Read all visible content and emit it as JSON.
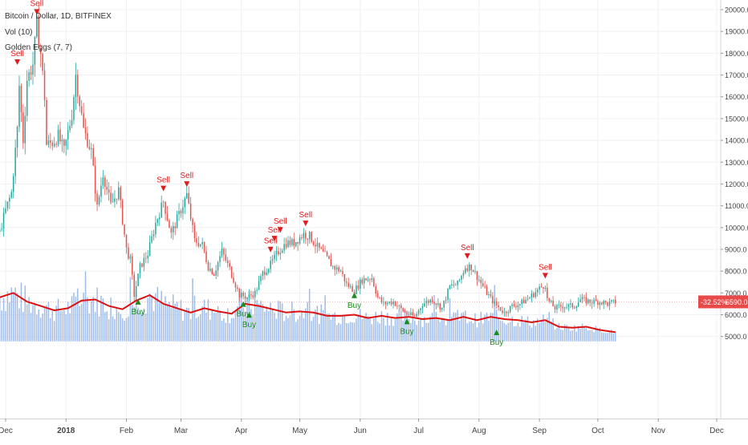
{
  "legend": {
    "symbol_line": "Bitcoin / Dollar, 1D, BITFINEX",
    "volume_line": "Vol (10)",
    "indicator_line": "Golden Eggs (7, 7)"
  },
  "price_tag": {
    "change": "-32.52%",
    "price": "6590.0",
    "color": "#e84a4a"
  },
  "colors": {
    "up": "#26a69a",
    "down": "#e0534f",
    "volume": "#8fb0e8",
    "volume_ma": "#dd1111",
    "sell": "#e01b1b",
    "buy": "#1a8c1a",
    "grid": "#eef0f3",
    "axis_text": "#444444"
  },
  "chart_data": {
    "type": "candlestick",
    "xlabel": "",
    "ylabel": "",
    "ylim": [
      4800,
      20400
    ],
    "grid": true,
    "x_ticks": [
      "Dec",
      "2018",
      "Feb",
      "Mar",
      "Apr",
      "May",
      "Jun",
      "Jul",
      "Aug",
      "Sep",
      "Oct",
      "Nov",
      "Dec"
    ],
    "x_tick_dates": [
      "2017-12-01",
      "2018-01-01",
      "2018-02-01",
      "2018-03-01",
      "2018-04-01",
      "2018-05-01",
      "2018-06-01",
      "2018-07-01",
      "2018-08-01",
      "2018-09-01",
      "2018-10-01",
      "2018-11-01",
      "2018-12-01"
    ],
    "y_ticks": [
      5000,
      6000,
      7000,
      8000,
      9000,
      10000,
      11000,
      12000,
      13000,
      14000,
      15000,
      16000,
      17000,
      18000,
      19000,
      20000
    ],
    "y_tick_labels": [
      "5000.0",
      "6000.0",
      "7000.0",
      "8000.0",
      "9000.0",
      "10000.0",
      "11000.0",
      "12000.0",
      "13000.0",
      "14000.0",
      "15000.0",
      "16000.0",
      "17000.0",
      "18000.0",
      "19000.0",
      "20000.0"
    ],
    "price_keypoints": [
      [
        "2017-11-28",
        9800
      ],
      [
        "2017-12-01",
        10800
      ],
      [
        "2017-12-04",
        11600
      ],
      [
        "2017-12-07",
        14500
      ],
      [
        "2017-12-08",
        16500
      ],
      [
        "2017-12-10",
        14000
      ],
      [
        "2017-12-12",
        16800
      ],
      [
        "2017-12-15",
        17500
      ],
      [
        "2017-12-17",
        19300
      ],
      [
        "2017-12-19",
        18000
      ],
      [
        "2017-12-21",
        16000
      ],
      [
        "2017-12-22",
        13800
      ],
      [
        "2017-12-25",
        13900
      ],
      [
        "2017-12-28",
        14200
      ],
      [
        "2017-12-31",
        13500
      ],
      [
        "2018-01-04",
        15200
      ],
      [
        "2018-01-06",
        17000
      ],
      [
        "2018-01-10",
        14500
      ],
      [
        "2018-01-14",
        13500
      ],
      [
        "2018-01-17",
        10900
      ],
      [
        "2018-01-20",
        12500
      ],
      [
        "2018-01-24",
        11000
      ],
      [
        "2018-01-28",
        11700
      ],
      [
        "2018-02-01",
        9000
      ],
      [
        "2018-02-03",
        8500
      ],
      [
        "2018-02-05",
        6900
      ],
      [
        "2018-02-08",
        8200
      ],
      [
        "2018-02-12",
        8800
      ],
      [
        "2018-02-16",
        10200
      ],
      [
        "2018-02-20",
        11200
      ],
      [
        "2018-02-24",
        9700
      ],
      [
        "2018-02-28",
        10600
      ],
      [
        "2018-03-04",
        11500
      ],
      [
        "2018-03-08",
        9400
      ],
      [
        "2018-03-12",
        9200
      ],
      [
        "2018-03-15",
        8200
      ],
      [
        "2018-03-18",
        7900
      ],
      [
        "2018-03-22",
        8900
      ],
      [
        "2018-03-26",
        8100
      ],
      [
        "2018-03-31",
        6900
      ],
      [
        "2018-04-04",
        6800
      ],
      [
        "2018-04-08",
        7000
      ],
      [
        "2018-04-12",
        7900
      ],
      [
        "2018-04-16",
        8300
      ],
      [
        "2018-04-20",
        8900
      ],
      [
        "2018-04-24",
        9300
      ],
      [
        "2018-04-28",
        9300
      ],
      [
        "2018-05-03",
        9700
      ],
      [
        "2018-05-06",
        9600
      ],
      [
        "2018-05-10",
        9100
      ],
      [
        "2018-05-14",
        8700
      ],
      [
        "2018-05-18",
        8200
      ],
      [
        "2018-05-22",
        8000
      ],
      [
        "2018-05-25",
        7400
      ],
      [
        "2018-05-29",
        7100
      ],
      [
        "2018-06-02",
        7600
      ],
      [
        "2018-06-07",
        7700
      ],
      [
        "2018-06-10",
        6800
      ],
      [
        "2018-06-13",
        6500
      ],
      [
        "2018-06-18",
        6600
      ],
      [
        "2018-06-24",
        6100
      ],
      [
        "2018-06-29",
        5900
      ],
      [
        "2018-07-03",
        6500
      ],
      [
        "2018-07-08",
        6700
      ],
      [
        "2018-07-13",
        6300
      ],
      [
        "2018-07-17",
        7300
      ],
      [
        "2018-07-21",
        7400
      ],
      [
        "2018-07-25",
        8200
      ],
      [
        "2018-07-28",
        8200
      ],
      [
        "2018-08-01",
        7600
      ],
      [
        "2018-08-05",
        7000
      ],
      [
        "2018-08-09",
        6500
      ],
      [
        "2018-08-14",
        6100
      ],
      [
        "2018-08-18",
        6400
      ],
      [
        "2018-08-22",
        6500
      ],
      [
        "2018-08-27",
        6800
      ],
      [
        "2018-09-01",
        7200
      ],
      [
        "2018-09-04",
        7400
      ],
      [
        "2018-09-05",
        6700
      ],
      [
        "2018-09-09",
        6300
      ],
      [
        "2018-09-13",
        6400
      ],
      [
        "2018-09-19",
        6400
      ],
      [
        "2018-09-22",
        6700
      ],
      [
        "2018-09-27",
        6600
      ],
      [
        "2018-10-02",
        6600
      ],
      [
        "2018-10-06",
        6500
      ],
      [
        "2018-10-10",
        6590
      ]
    ],
    "volume_ma_keypoints": [
      [
        "2017-11-28",
        6800
      ],
      [
        "2017-12-05",
        7000
      ],
      [
        "2017-12-12",
        6600
      ],
      [
        "2017-12-19",
        6400
      ],
      [
        "2017-12-26",
        6200
      ],
      [
        "2018-01-02",
        6300
      ],
      [
        "2018-01-09",
        6650
      ],
      [
        "2018-01-16",
        6700
      ],
      [
        "2018-01-23",
        6400
      ],
      [
        "2018-01-30",
        6250
      ],
      [
        "2018-02-06",
        6650
      ],
      [
        "2018-02-13",
        6900
      ],
      [
        "2018-02-20",
        6500
      ],
      [
        "2018-02-27",
        6300
      ],
      [
        "2018-03-06",
        6100
      ],
      [
        "2018-03-13",
        6300
      ],
      [
        "2018-03-20",
        6150
      ],
      [
        "2018-03-27",
        6050
      ],
      [
        "2018-04-03",
        6500
      ],
      [
        "2018-04-10",
        6400
      ],
      [
        "2018-04-17",
        6250
      ],
      [
        "2018-04-24",
        6100
      ],
      [
        "2018-05-01",
        6150
      ],
      [
        "2018-05-08",
        6100
      ],
      [
        "2018-05-15",
        5950
      ],
      [
        "2018-05-22",
        5950
      ],
      [
        "2018-05-29",
        6000
      ],
      [
        "2018-06-05",
        5850
      ],
      [
        "2018-06-12",
        5950
      ],
      [
        "2018-06-19",
        5850
      ],
      [
        "2018-06-26",
        5900
      ],
      [
        "2018-07-03",
        5800
      ],
      [
        "2018-07-10",
        5850
      ],
      [
        "2018-07-17",
        5750
      ],
      [
        "2018-07-24",
        5900
      ],
      [
        "2018-07-31",
        5750
      ],
      [
        "2018-08-07",
        5900
      ],
      [
        "2018-08-14",
        5800
      ],
      [
        "2018-08-21",
        5750
      ],
      [
        "2018-08-28",
        5650
      ],
      [
        "2018-09-04",
        5750
      ],
      [
        "2018-09-11",
        5450
      ],
      [
        "2018-09-18",
        5400
      ],
      [
        "2018-09-25",
        5450
      ],
      [
        "2018-10-02",
        5300
      ],
      [
        "2018-10-10",
        5200
      ]
    ],
    "signals": [
      {
        "type": "sell",
        "label": "Sell",
        "date": "2017-12-07",
        "value": 17500
      },
      {
        "type": "sell",
        "label": "Sell",
        "date": "2017-12-17",
        "value": 19800
      },
      {
        "type": "sell",
        "label": "Sell",
        "date": "2018-02-20",
        "value": 11700
      },
      {
        "type": "sell",
        "label": "Sell",
        "date": "2018-03-04",
        "value": 11900
      },
      {
        "type": "sell",
        "label": "Sell",
        "date": "2018-04-16",
        "value": 8900
      },
      {
        "type": "sell",
        "label": "Sell",
        "date": "2018-04-18",
        "value": 9400
      },
      {
        "type": "sell",
        "label": "Sell",
        "date": "2018-04-21",
        "value": 9800
      },
      {
        "type": "sell",
        "label": "Sell",
        "date": "2018-05-04",
        "value": 10100
      },
      {
        "type": "sell",
        "label": "Sell",
        "date": "2018-07-26",
        "value": 8600
      },
      {
        "type": "sell",
        "label": "Sell",
        "date": "2018-09-04",
        "value": 7700
      },
      {
        "type": "buy",
        "label": "Buy",
        "date": "2018-02-07",
        "value": 6500
      },
      {
        "type": "buy",
        "label": "Buy",
        "date": "2018-04-02",
        "value": 6400
      },
      {
        "type": "buy",
        "label": "Buy",
        "date": "2018-04-05",
        "value": 5900
      },
      {
        "type": "buy",
        "label": "Buy",
        "date": "2018-05-29",
        "value": 6800
      },
      {
        "type": "buy",
        "label": "Buy",
        "date": "2018-06-25",
        "value": 5600
      },
      {
        "type": "buy",
        "label": "Buy",
        "date": "2018-08-10",
        "value": 5100
      }
    ]
  }
}
